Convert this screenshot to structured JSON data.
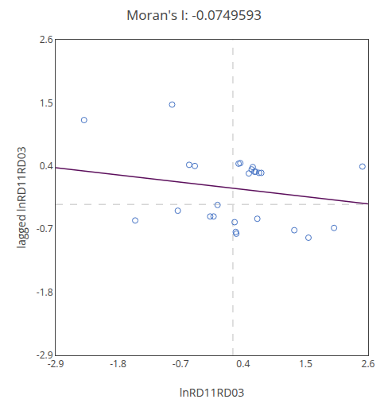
{
  "chart_data": {
    "type": "scatter",
    "title": "Moran's I: -0.0749593",
    "xlabel": "lnRD11RD03",
    "ylabel": "lagged lnRD11RD03",
    "x": [
      -2.4,
      -1.5,
      -0.85,
      -0.75,
      -0.55,
      -0.45,
      -0.18,
      -0.12,
      -0.05,
      0.25,
      0.27,
      0.28,
      0.32,
      0.35,
      0.5,
      0.55,
      0.57,
      0.6,
      0.62,
      0.65,
      0.68,
      0.72,
      1.3,
      1.55,
      2.0,
      2.5
    ],
    "values": [
      1.2,
      -0.55,
      1.47,
      -0.38,
      0.42,
      0.4,
      -0.48,
      -0.48,
      -0.28,
      -0.58,
      -0.75,
      -0.78,
      0.44,
      0.45,
      0.27,
      0.34,
      0.38,
      0.3,
      0.3,
      -0.52,
      0.28,
      0.28,
      -0.72,
      -0.85,
      -0.68,
      0.39
    ],
    "color": "#4472C4",
    "marker": "circle-open",
    "regression": {
      "x": [
        -2.9,
        2.6
      ],
      "y": [
        0.37,
        -0.26
      ],
      "color": "#5C0F5C"
    },
    "reference_lines": {
      "x": 0.22,
      "y": -0.27,
      "color": "#C0C0C0",
      "line_style": "dash"
    },
    "xlim": [
      -2.9,
      2.6
    ],
    "ylim": [
      -2.9,
      2.6
    ],
    "xticks": [
      -2.9,
      -1.8,
      -0.7,
      0.4,
      1.5,
      2.6
    ],
    "yticks": [
      -2.9,
      -1.8,
      -0.7,
      0.4,
      1.5,
      2.6
    ],
    "grid": false
  }
}
